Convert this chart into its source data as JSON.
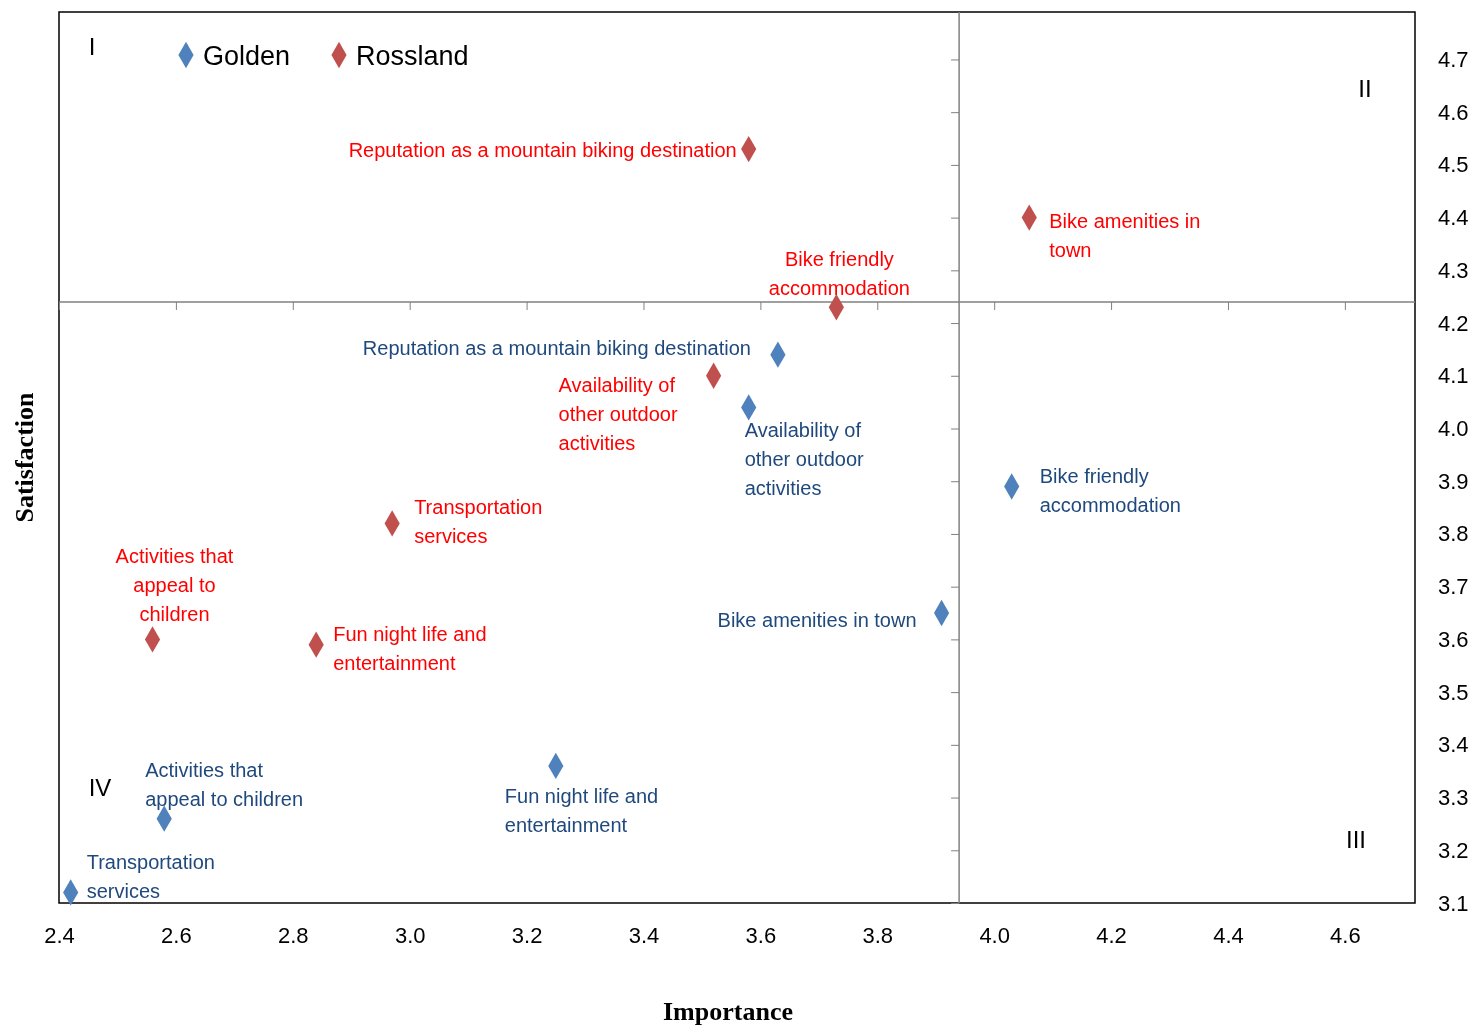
{
  "chart_data": {
    "type": "scatter",
    "xlabel": "Importance",
    "ylabel": "Satisfaction",
    "xlim": [
      2.4,
      4.72
    ],
    "ylim": [
      3.1,
      4.79
    ],
    "xticks": [
      2.4,
      2.6,
      2.8,
      {
        "value": 3,
        "label": "3.0"
      },
      3.2,
      3.4,
      3.6,
      3.8,
      {
        "value": 4,
        "label": "4.0"
      },
      4.2,
      4.4,
      4.6
    ],
    "yticks": [
      3.1,
      3.2,
      3.3,
      3.4,
      3.5,
      3.6,
      3.7,
      3.8,
      3.9,
      {
        "value": 4,
        "label": "4.0"
      },
      4.1,
      4.2,
      4.3,
      4.4,
      4.5,
      4.6,
      4.7
    ],
    "marker": "diamond",
    "grid": false,
    "legend": "top left",
    "ref_lines": [
      {
        "axis": "x",
        "value": 3.94,
        "color": "#808080"
      },
      {
        "axis": "y",
        "value": 4.24,
        "color": "#808080"
      }
    ],
    "annotations": [
      "I",
      "II",
      "III",
      "IV"
    ],
    "series": [
      {
        "name": "Golden",
        "color": "#4f81bd",
        "x": [
          3.63,
          3.58,
          4.03,
          3.91,
          3.25,
          2.58,
          2.42
        ],
        "values": [
          4.14,
          4.04,
          3.89,
          3.65,
          3.36,
          3.26,
          3.12
        ],
        "value_labels": [
          "Reputation as a mountain biking destination",
          "Availability of other outdoor activities",
          "Bike friendly accommodation",
          "Bike amenities in town",
          "Fun night life and entertainment",
          "Activities that appeal to children",
          "Transportation services"
        ]
      },
      {
        "name": "Rossland",
        "color": "#c0504d",
        "x": [
          3.58,
          4.06,
          3.73,
          3.52,
          2.97,
          2.56,
          2.84
        ],
        "values": [
          4.53,
          4.4,
          4.23,
          4.1,
          3.82,
          3.6,
          3.59
        ],
        "value_labels": [
          "Reputation as a mountain biking destination",
          "Bike amenities in town",
          "Bike friendly accommodation",
          "Availability of other outdoor activities",
          "Transportation services",
          "Activities that appeal to children",
          "Fun night life and entertainment"
        ]
      }
    ]
  }
}
